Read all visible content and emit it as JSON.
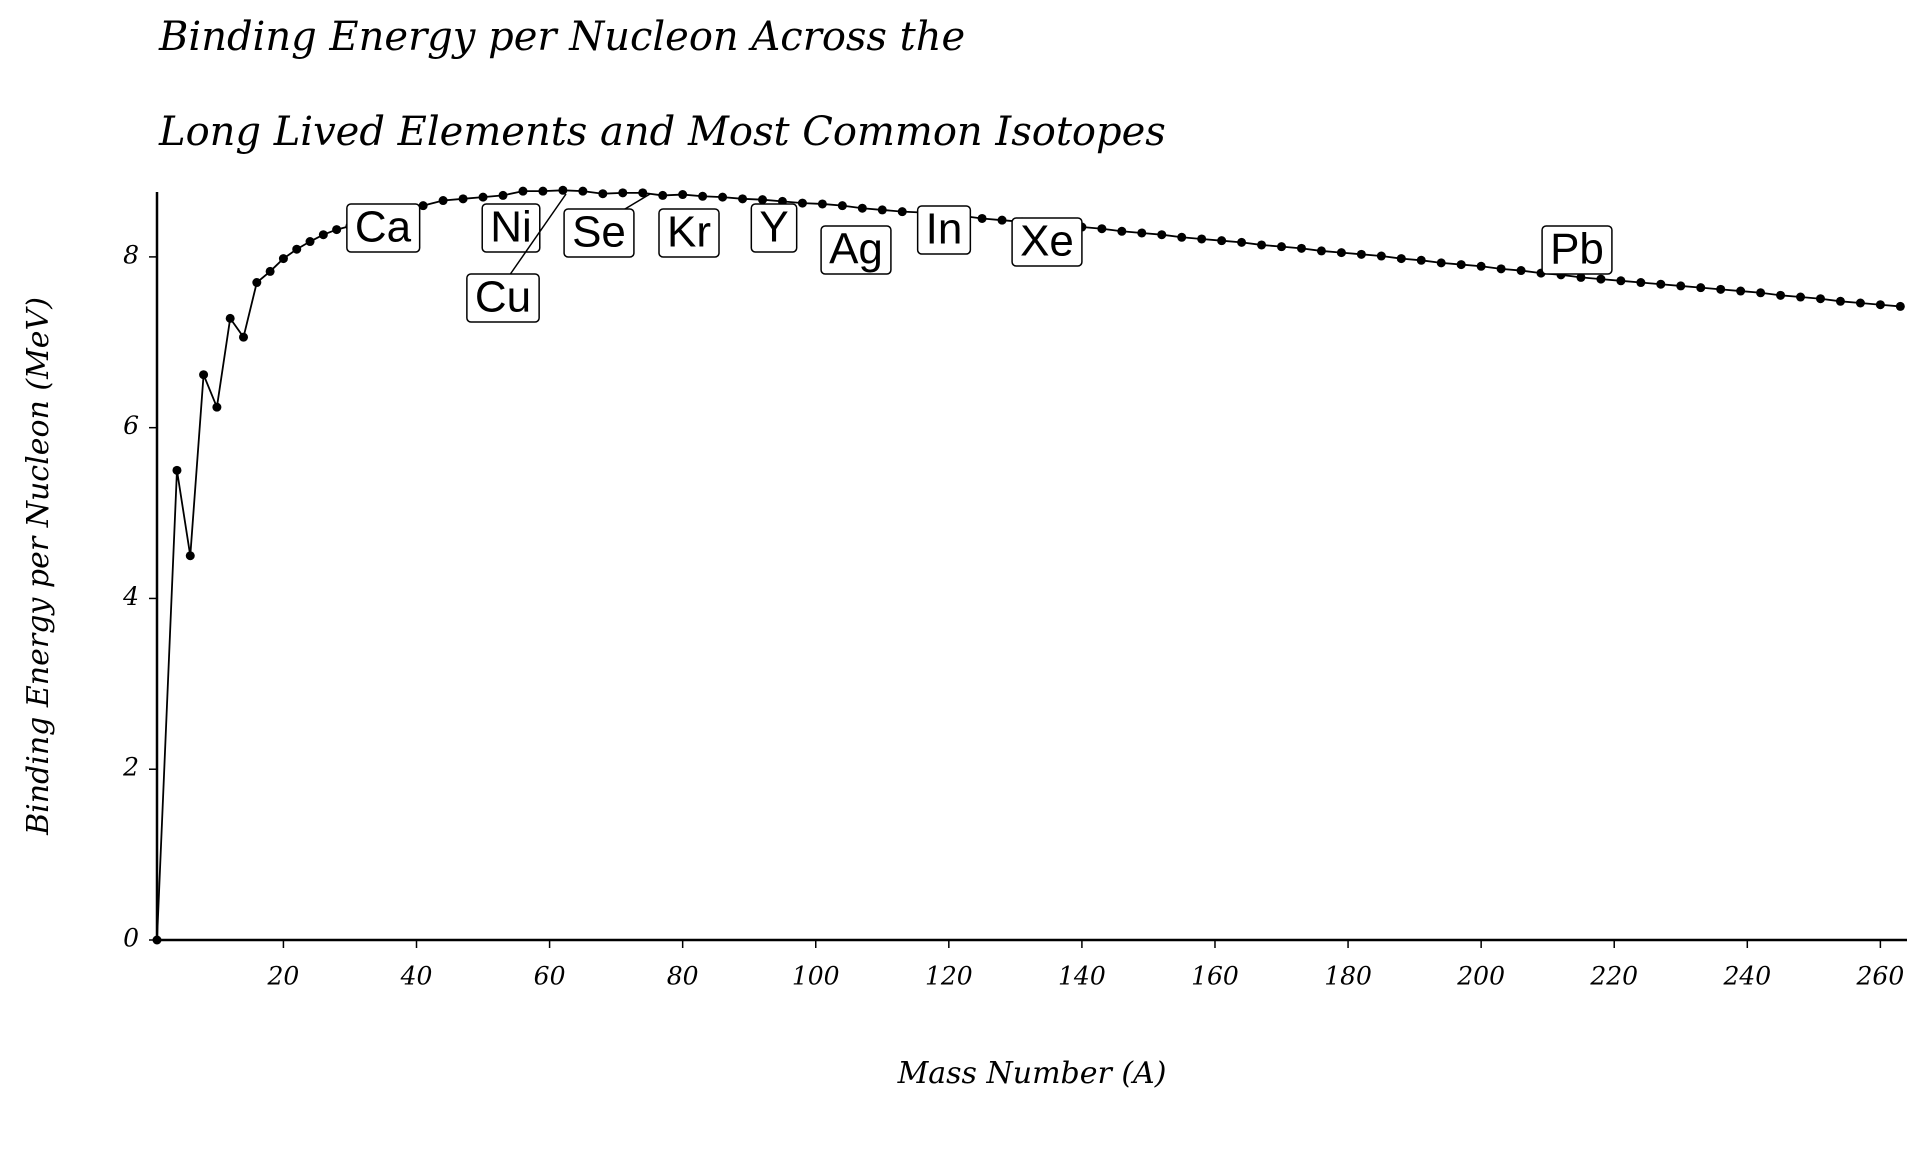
{
  "chart_data": {
    "type": "line",
    "title": [
      "Binding Energy per Nucleon Across the",
      "Long Lived Elements and Most Common Isotopes"
    ],
    "x_label": "Mass Number (A)",
    "y_label": "Binding Energy per Nucleon (MeV)",
    "color": "#000000",
    "x": [
      1,
      4,
      6,
      8,
      10,
      12,
      14,
      16,
      18,
      20,
      22,
      24,
      26,
      28,
      30,
      32,
      35,
      38,
      41,
      44,
      47,
      50,
      53,
      56,
      59,
      62,
      65,
      68,
      71,
      74,
      77,
      80,
      83,
      86,
      89,
      92,
      95,
      98,
      101,
      104,
      107,
      110,
      113,
      116,
      119,
      122,
      125,
      128,
      131,
      134,
      137,
      140,
      143,
      146,
      149,
      152,
      155,
      158,
      161,
      164,
      167,
      170,
      173,
      176,
      179,
      182,
      185,
      188,
      191,
      194,
      197,
      200,
      203,
      206,
      209,
      212,
      215,
      218,
      221,
      224,
      227,
      230,
      233,
      236,
      239,
      242,
      245,
      248,
      251,
      254,
      257,
      260,
      263
    ],
    "values": [
      0,
      5.5,
      4.5,
      6.62,
      6.24,
      7.28,
      7.06,
      7.7,
      7.83,
      7.98,
      8.09,
      8.18,
      8.26,
      8.32,
      8.36,
      8.41,
      8.48,
      8.54,
      8.6,
      8.66,
      8.68,
      8.7,
      8.72,
      8.77,
      8.77,
      8.78,
      8.77,
      8.74,
      8.75,
      8.75,
      8.72,
      8.73,
      8.71,
      8.7,
      8.68,
      8.67,
      8.65,
      8.63,
      8.62,
      8.6,
      8.57,
      8.55,
      8.53,
      8.52,
      8.5,
      8.48,
      8.45,
      8.43,
      8.41,
      8.39,
      8.37,
      8.35,
      8.33,
      8.3,
      8.28,
      8.26,
      8.23,
      8.21,
      8.19,
      8.17,
      8.14,
      8.12,
      8.1,
      8.07,
      8.05,
      8.03,
      8.01,
      7.98,
      7.96,
      7.93,
      7.91,
      7.89,
      7.86,
      7.84,
      7.81,
      7.79,
      7.76,
      7.74,
      7.72,
      7.7,
      7.68,
      7.66,
      7.64,
      7.62,
      7.6,
      7.58,
      7.55,
      7.53,
      7.51,
      7.48,
      7.46,
      7.44,
      7.42
    ],
    "xlim": [
      1,
      264
    ],
    "ylim": [
      0,
      8.76
    ],
    "xticks": [
      20,
      40,
      60,
      80,
      100,
      120,
      140,
      160,
      180,
      200,
      220,
      240,
      260
    ],
    "yticks": [
      0,
      2,
      4,
      6,
      8
    ],
    "annotations": [
      "Ca",
      "Ni",
      "Cu",
      "Se",
      "Kr",
      "Y",
      "Ag",
      "In",
      "Xe",
      "Pb"
    ]
  }
}
